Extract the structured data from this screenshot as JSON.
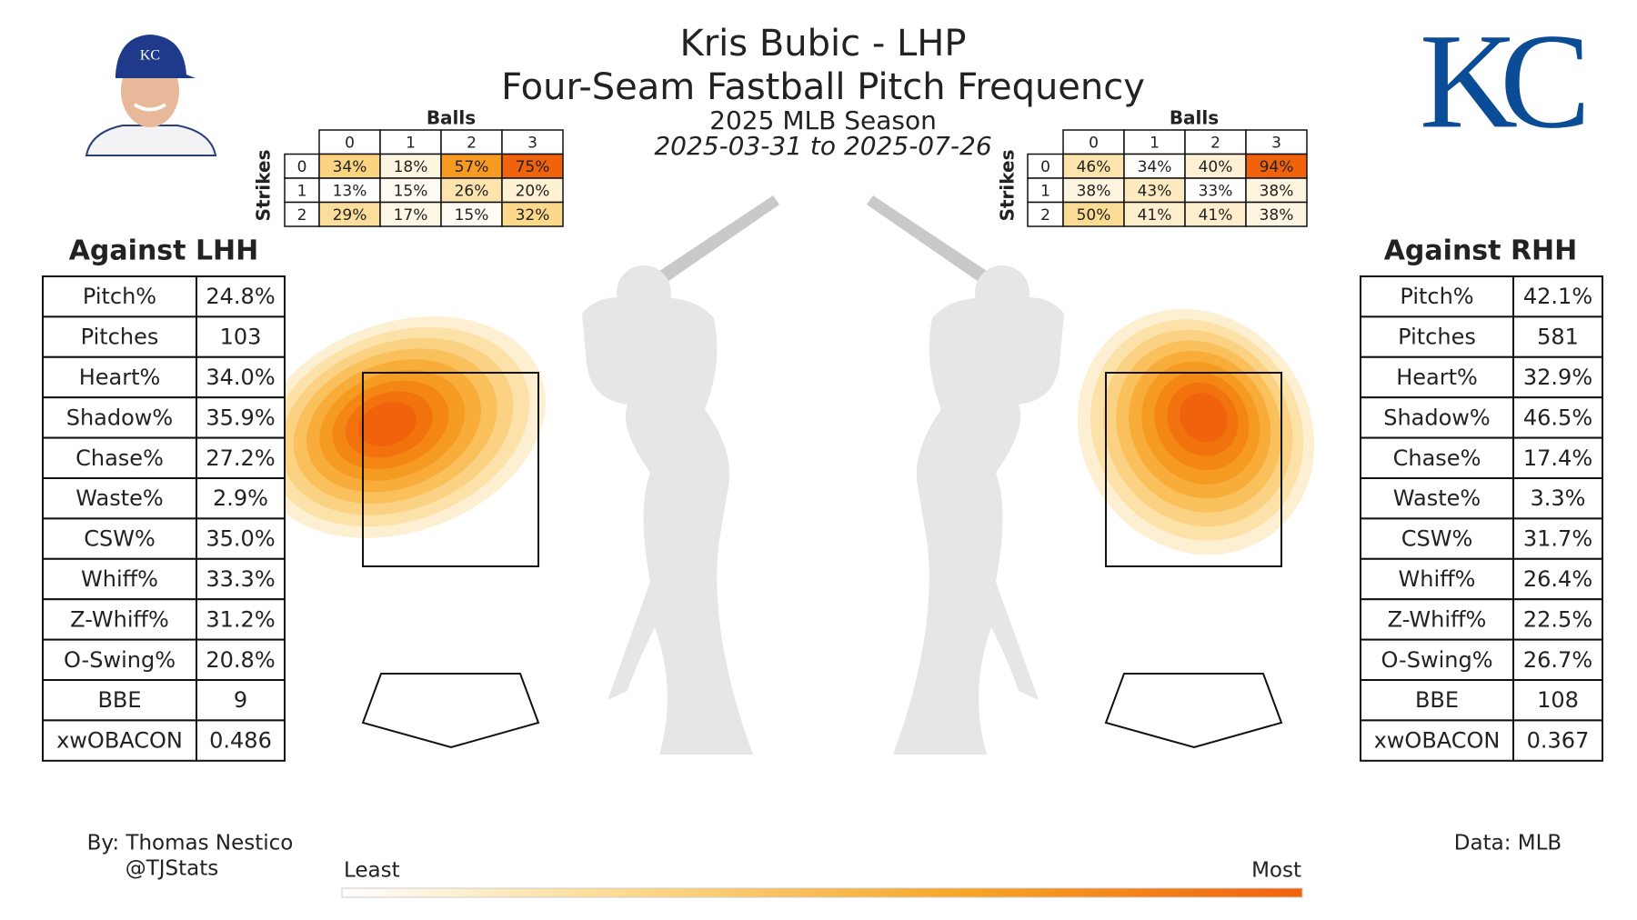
{
  "header": {
    "title": "Kris Bubic - LHP",
    "subtitle": "Four-Seam Fastball Pitch Frequency",
    "season": "2025 MLB Season",
    "dates": "2025-03-31 to 2025-07-26"
  },
  "logo": "KC",
  "count_grids": [
    {
      "balls_label": "Balls",
      "strikes_label": "Strikes",
      "balls": [
        "0",
        "1",
        "2",
        "3"
      ],
      "strikes": [
        "0",
        "1",
        "2"
      ],
      "values": [
        [
          34,
          18,
          57,
          75
        ],
        [
          13,
          15,
          26,
          20
        ],
        [
          29,
          17,
          15,
          32
        ]
      ],
      "value_labels": [
        [
          "34%",
          "18%",
          "57%",
          "75%"
        ],
        [
          "13%",
          "15%",
          "26%",
          "20%"
        ],
        [
          "29%",
          "17%",
          "15%",
          "32%"
        ]
      ]
    },
    {
      "balls_label": "Balls",
      "strikes_label": "Strikes",
      "balls": [
        "0",
        "1",
        "2",
        "3"
      ],
      "strikes": [
        "0",
        "1",
        "2"
      ],
      "values": [
        [
          46,
          34,
          40,
          94
        ],
        [
          38,
          43,
          33,
          38
        ],
        [
          50,
          41,
          41,
          38
        ]
      ],
      "value_labels": [
        [
          "46%",
          "34%",
          "40%",
          "94%"
        ],
        [
          "38%",
          "43%",
          "33%",
          "38%"
        ],
        [
          "50%",
          "41%",
          "41%",
          "38%"
        ]
      ]
    }
  ],
  "tables": [
    {
      "title": "Against LHH",
      "rows": [
        [
          "Pitch%",
          "24.8%"
        ],
        [
          "Pitches",
          "103"
        ],
        [
          "Heart%",
          "34.0%"
        ],
        [
          "Shadow%",
          "35.9%"
        ],
        [
          "Chase%",
          "27.2%"
        ],
        [
          "Waste%",
          "2.9%"
        ],
        [
          "CSW%",
          "35.0%"
        ],
        [
          "Whiff%",
          "33.3%"
        ],
        [
          "Z-Whiff%",
          "31.2%"
        ],
        [
          "O-Swing%",
          "20.8%"
        ],
        [
          "BBE",
          "9"
        ],
        [
          "xwOBACON",
          "0.486"
        ]
      ]
    },
    {
      "title": "Against RHH",
      "rows": [
        [
          "Pitch%",
          "42.1%"
        ],
        [
          "Pitches",
          "581"
        ],
        [
          "Heart%",
          "32.9%"
        ],
        [
          "Shadow%",
          "46.5%"
        ],
        [
          "Chase%",
          "17.4%"
        ],
        [
          "Waste%",
          "3.3%"
        ],
        [
          "CSW%",
          "31.7%"
        ],
        [
          "Whiff%",
          "26.4%"
        ],
        [
          "Z-Whiff%",
          "22.5%"
        ],
        [
          "O-Swing%",
          "26.7%"
        ],
        [
          "BBE",
          "108"
        ],
        [
          "xwOBACON",
          "0.367"
        ]
      ]
    }
  ],
  "footer": {
    "author": "By: Thomas Nestico",
    "handle": "@TJStats",
    "source": "Data: MLB",
    "least": "Least",
    "most": "Most"
  }
}
